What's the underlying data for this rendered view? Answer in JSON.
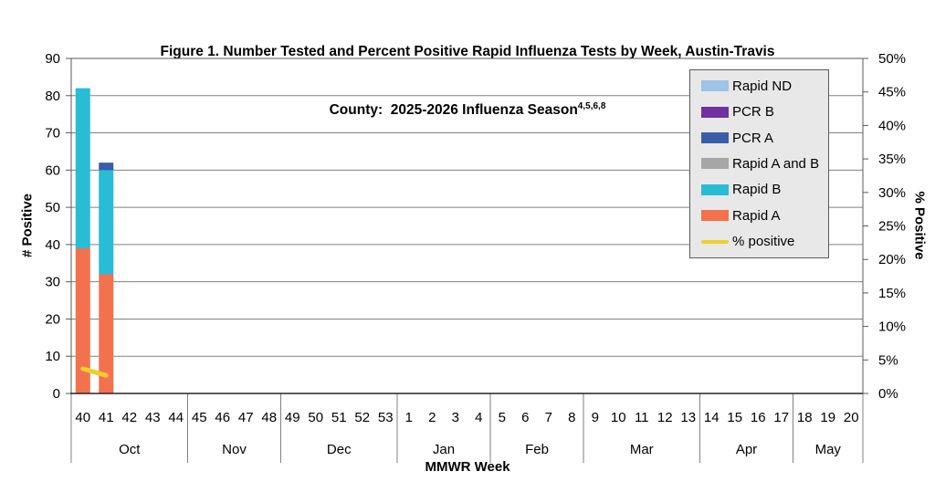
{
  "figure": {
    "title_line1": "Figure 1. Number Tested and Percent Positive Rapid Influenza Tests by Week, Austin-Travis",
    "title_line2": "County:  2025-2026 Influenza Season",
    "title_superscript": "4,5,6,8"
  },
  "chart_data": {
    "type": "bar",
    "stacked": true,
    "title": "Figure 1. Number Tested and Percent Positive Rapid Influenza Tests by Week, Austin-Travis County: 2025-2026 Influenza Season",
    "x_axis": {
      "label": "MMWR Week",
      "month_groups": [
        {
          "label": "Oct",
          "weeks": [
            "40",
            "41",
            "42",
            "43",
            "44"
          ]
        },
        {
          "label": "Nov",
          "weeks": [
            "45",
            "46",
            "47",
            "48"
          ]
        },
        {
          "label": "Dec",
          "weeks": [
            "49",
            "50",
            "51",
            "52",
            "53"
          ]
        },
        {
          "label": "Jan",
          "weeks": [
            "1",
            "2",
            "3",
            "4"
          ]
        },
        {
          "label": "Feb",
          "weeks": [
            "5",
            "6",
            "7",
            "8"
          ]
        },
        {
          "label": "Mar",
          "weeks": [
            "9",
            "10",
            "11",
            "12",
            "13"
          ]
        },
        {
          "label": "Apr",
          "weeks": [
            "14",
            "15",
            "16",
            "17"
          ]
        },
        {
          "label": "May",
          "weeks": [
            "18",
            "19",
            "20"
          ]
        }
      ]
    },
    "y_left": {
      "label": "# Positive",
      "min": 0,
      "max": 90,
      "step": 10,
      "tick_labels": [
        "0",
        "10",
        "20",
        "30",
        "40",
        "50",
        "60",
        "70",
        "80",
        "90"
      ]
    },
    "y_right": {
      "label": "% Positive",
      "min": 0,
      "max": 50,
      "step": 5,
      "tick_labels": [
        "0%",
        "5%",
        "10%",
        "15%",
        "20%",
        "25%",
        "30%",
        "35%",
        "40%",
        "45%",
        "50%"
      ]
    },
    "series": [
      {
        "name": "Rapid A",
        "color": "#F4714E",
        "values": {
          "40": 39,
          "41": 32
        }
      },
      {
        "name": "Rapid B",
        "color": "#29BCD5",
        "values": {
          "40": 43,
          "41": 28
        }
      },
      {
        "name": "Rapid A and B",
        "color": "#A6A6A6",
        "values": {}
      },
      {
        "name": "PCR A",
        "color": "#3B5CA8",
        "values": {
          "41": 2
        }
      },
      {
        "name": "PCR B",
        "color": "#7030A0",
        "values": {}
      },
      {
        "name": "Rapid ND",
        "color": "#9DC3E6",
        "values": {}
      }
    ],
    "line_series": {
      "name": "% positive",
      "color": "#EFCE2D",
      "axis": "right",
      "values": {
        "40": 3.7,
        "41": 2.7
      }
    },
    "legend": {
      "position": "top-right",
      "order": [
        "Rapid ND",
        "PCR B",
        "PCR A",
        "Rapid A and B",
        "Rapid B",
        "Rapid A",
        "% positive"
      ]
    },
    "grid": {
      "horizontal": true,
      "color": "#808080"
    },
    "colors": {
      "plot_border": "#595959",
      "bottom_axis": "#262626",
      "legend_bg": "#E8E8E8",
      "legend_border": "#595959"
    }
  }
}
